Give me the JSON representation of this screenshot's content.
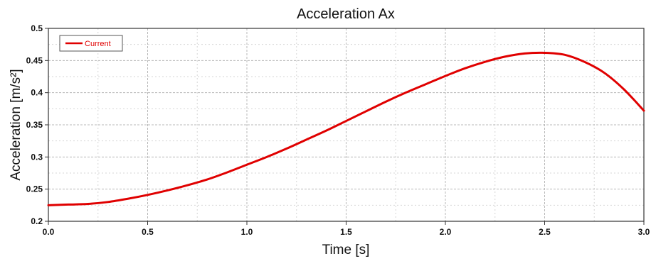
{
  "chart_data": {
    "type": "line",
    "title": "Acceleration Ax",
    "xlabel": "Time [s]",
    "ylabel": "Acceleration [m/s²]",
    "xlim": [
      0,
      3
    ],
    "ylim": [
      0.2,
      0.5
    ],
    "x_ticks": [
      "0.0",
      "0.5",
      "1.0",
      "1.5",
      "2.0",
      "2.5",
      "3.0"
    ],
    "y_ticks": [
      "0.2",
      "0.25",
      "0.3",
      "0.35",
      "0.4",
      "0.45",
      "0.5"
    ],
    "grid": true,
    "legend": {
      "position": "top-left"
    },
    "series": [
      {
        "name": "Current",
        "color": "#e00000",
        "x": [
          0.0,
          0.1,
          0.2,
          0.3,
          0.4,
          0.5,
          0.6,
          0.7,
          0.8,
          0.9,
          1.0,
          1.1,
          1.2,
          1.3,
          1.4,
          1.5,
          1.6,
          1.7,
          1.8,
          1.9,
          2.0,
          2.1,
          2.2,
          2.3,
          2.4,
          2.5,
          2.6,
          2.7,
          2.8,
          2.9,
          3.0
        ],
        "y": [
          0.225,
          0.226,
          0.227,
          0.23,
          0.235,
          0.241,
          0.248,
          0.256,
          0.265,
          0.276,
          0.288,
          0.3,
          0.313,
          0.327,
          0.341,
          0.356,
          0.371,
          0.386,
          0.4,
          0.413,
          0.426,
          0.438,
          0.448,
          0.456,
          0.461,
          0.462,
          0.459,
          0.448,
          0.431,
          0.405,
          0.372
        ]
      }
    ]
  }
}
